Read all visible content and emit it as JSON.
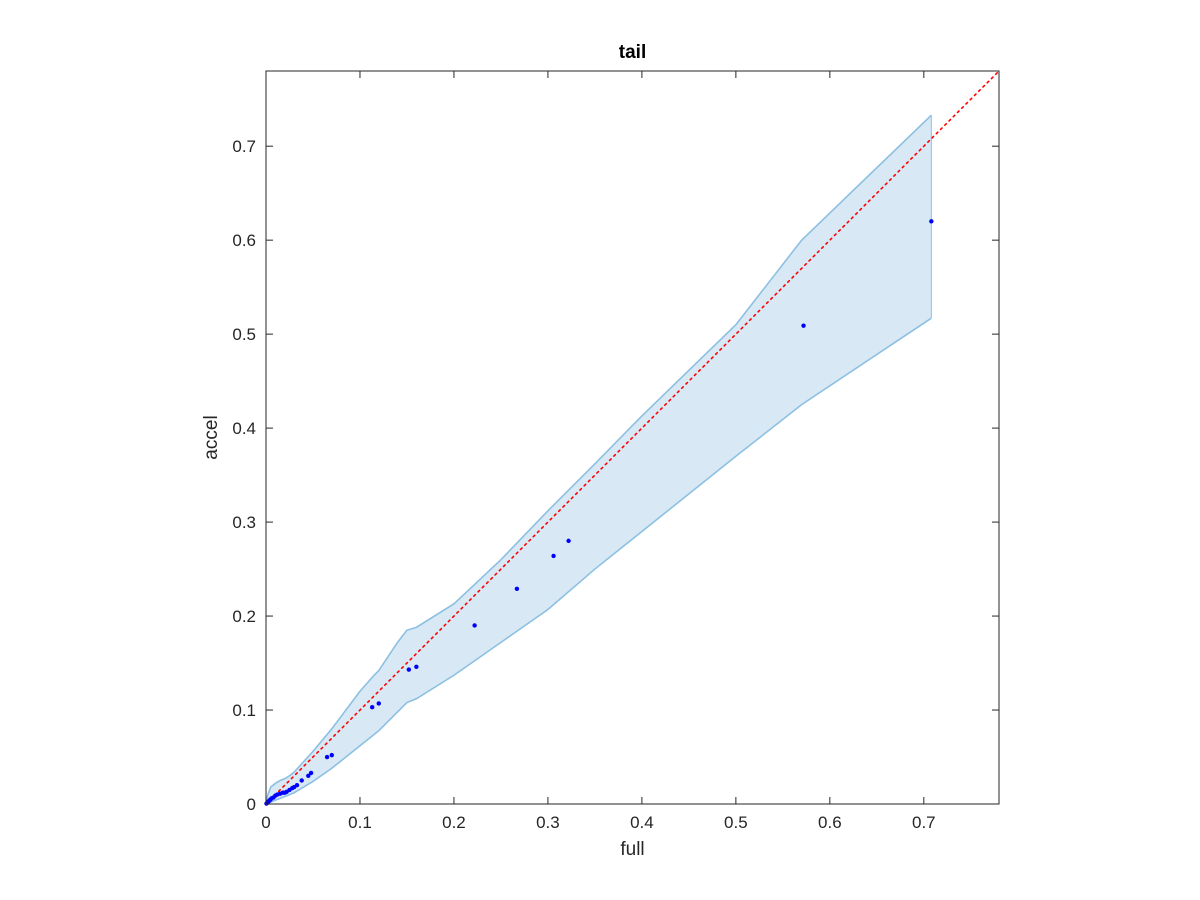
{
  "chart_data": {
    "type": "scatter",
    "title": "tail",
    "xlabel": "full",
    "ylabel": "accel",
    "xlim": [
      0,
      0.78
    ],
    "ylim": [
      0,
      0.78
    ],
    "xticks": [
      0,
      0.1,
      0.2,
      0.3,
      0.4,
      0.5,
      0.6,
      0.7
    ],
    "yticks": [
      0,
      0.1,
      0.2,
      0.3,
      0.4,
      0.5,
      0.6,
      0.7
    ],
    "xtick_labels": [
      "0",
      "0.1",
      "0.2",
      "0.3",
      "0.4",
      "0.5",
      "0.6",
      "0.7"
    ],
    "ytick_labels": [
      "0",
      "0.1",
      "0.2",
      "0.3",
      "0.4",
      "0.5",
      "0.6",
      "0.7"
    ],
    "grid": false,
    "box": true,
    "points": {
      "color": "#0000ff",
      "x": [
        0.0005,
        0.001,
        0.002,
        0.003,
        0.004,
        0.005,
        0.006,
        0.008,
        0.01,
        0.012,
        0.015,
        0.018,
        0.02,
        0.022,
        0.025,
        0.028,
        0.03,
        0.033,
        0.038,
        0.045,
        0.048,
        0.065,
        0.07,
        0.113,
        0.12,
        0.152,
        0.16,
        0.222,
        0.267,
        0.306,
        0.322,
        0.572,
        0.708
      ],
      "y": [
        0.0005,
        0.001,
        0.002,
        0.003,
        0.004,
        0.005,
        0.006,
        0.007,
        0.009,
        0.01,
        0.011,
        0.012,
        0.012,
        0.013,
        0.015,
        0.017,
        0.018,
        0.02,
        0.025,
        0.03,
        0.033,
        0.05,
        0.052,
        0.103,
        0.107,
        0.143,
        0.146,
        0.19,
        0.229,
        0.264,
        0.28,
        0.509,
        0.62
      ]
    },
    "band": {
      "fill_color": "#d8e8f4",
      "edge_color": "#8cc0e2",
      "x": [
        0,
        0.002,
        0.005,
        0.01,
        0.015,
        0.02,
        0.025,
        0.03,
        0.04,
        0.05,
        0.07,
        0.1,
        0.115,
        0.12,
        0.13,
        0.14,
        0.15,
        0.16,
        0.2,
        0.25,
        0.3,
        0.35,
        0.4,
        0.5,
        0.57,
        0.708
      ],
      "upper": [
        0,
        0.01,
        0.018,
        0.022,
        0.025,
        0.027,
        0.03,
        0.034,
        0.045,
        0.056,
        0.08,
        0.12,
        0.137,
        0.142,
        0.157,
        0.172,
        0.185,
        0.188,
        0.213,
        0.26,
        0.312,
        0.362,
        0.413,
        0.51,
        0.6,
        0.733
      ],
      "lower": [
        0,
        0.001,
        0.002,
        0.004,
        0.006,
        0.008,
        0.01,
        0.012,
        0.018,
        0.024,
        0.038,
        0.062,
        0.074,
        0.078,
        0.088,
        0.098,
        0.108,
        0.112,
        0.137,
        0.172,
        0.207,
        0.25,
        0.29,
        0.37,
        0.425,
        0.517
      ]
    },
    "reference_line": {
      "x": [
        0,
        0.78
      ],
      "y": [
        0,
        0.78
      ],
      "color": "#ff0000",
      "style": "dotted"
    }
  }
}
